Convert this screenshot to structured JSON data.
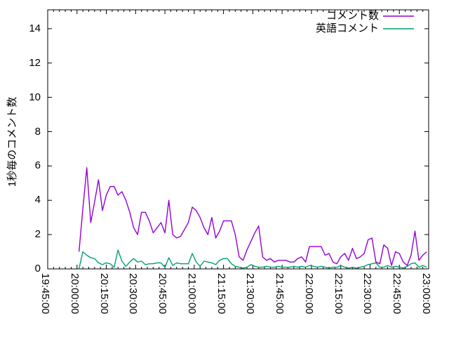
{
  "chart_data": {
    "type": "line",
    "title": "",
    "xlabel": "",
    "ylabel": "1秒毎のコメント数",
    "x_tick_labels": [
      "19:45:00",
      "20:00:00",
      "20:15:00",
      "20:30:00",
      "20:45:00",
      "21:00:00",
      "21:15:00",
      "21:30:00",
      "21:45:00",
      "22:00:00",
      "22:15:00",
      "22:30:00",
      "22:45:00",
      "23:00:00"
    ],
    "x_tick_interval_min": 15,
    "x_minor_tick_min": 3,
    "x_range_minutes": [
      0,
      195
    ],
    "yticks": [
      0,
      2,
      4,
      6,
      8,
      10,
      12,
      14
    ],
    "ylim": [
      0,
      15.1
    ],
    "grid": false,
    "legend_position": "top-right-inside",
    "series": [
      {
        "name": "コメント数",
        "color": "#9400d3",
        "start_offset_min": 16,
        "step_min": 2,
        "values": [
          1.0,
          3.5,
          5.9,
          2.7,
          3.9,
          5.2,
          3.4,
          4.3,
          4.8,
          4.8,
          4.3,
          4.5,
          4.0,
          3.3,
          2.4,
          2.0,
          3.3,
          3.3,
          2.8,
          2.1,
          2.4,
          2.7,
          2.1,
          4.0,
          2.0,
          1.8,
          1.9,
          2.3,
          2.7,
          3.6,
          3.4,
          3.0,
          2.4,
          2.0,
          3.0,
          1.8,
          2.2,
          2.8,
          2.8,
          2.8,
          2.0,
          0.7,
          0.5,
          1.1,
          1.6,
          2.1,
          2.5,
          0.7,
          0.5,
          0.6,
          0.4,
          0.5,
          0.5,
          0.5,
          0.4,
          0.4,
          0.6,
          0.7,
          0.4,
          1.3,
          1.3,
          1.3,
          1.3,
          0.8,
          0.9,
          0.4,
          0.3,
          0.7,
          0.9,
          0.5,
          1.2,
          0.6,
          0.7,
          0.9,
          1.7,
          1.8,
          0.4,
          0.3,
          1.4,
          1.2,
          0.2,
          1.0,
          0.9,
          0.4,
          0.2,
          0.8,
          2.2,
          0.5,
          0.8,
          1.0
        ]
      },
      {
        "name": "英語コメント",
        "color": "#009e73",
        "start_offset_min": 16,
        "step_min": 2,
        "values": [
          0.0,
          1.0,
          0.8,
          0.65,
          0.6,
          0.35,
          0.25,
          0.35,
          0.3,
          0.1,
          1.1,
          0.45,
          0.15,
          0.4,
          0.6,
          0.4,
          0.45,
          0.25,
          0.3,
          0.3,
          0.35,
          0.35,
          0.1,
          0.65,
          0.2,
          0.35,
          0.3,
          0.3,
          0.3,
          0.9,
          0.4,
          0.15,
          0.45,
          0.4,
          0.35,
          0.25,
          0.5,
          0.6,
          0.6,
          0.3,
          0.15,
          0.1,
          0.05,
          0.1,
          0.25,
          0.15,
          0.1,
          0.1,
          0.15,
          0.1,
          0.1,
          0.15,
          0.1,
          0.1,
          0.1,
          0.15,
          0.1,
          0.15,
          0.1,
          0.2,
          0.15,
          0.1,
          0.15,
          0.1,
          0.05,
          0.1,
          0.1,
          0.2,
          0.1,
          0.05,
          0.1,
          0.05,
          0.1,
          0.15,
          0.25,
          0.3,
          0.35,
          0.1,
          0.1,
          0.2,
          0.1,
          0.15,
          0.1,
          0.05,
          0.15,
          0.3,
          0.35,
          0.1,
          0.2,
          0.1
        ]
      }
    ]
  },
  "colors": {
    "background": "#ffffff",
    "axis": "#000000",
    "text": "#000000"
  }
}
